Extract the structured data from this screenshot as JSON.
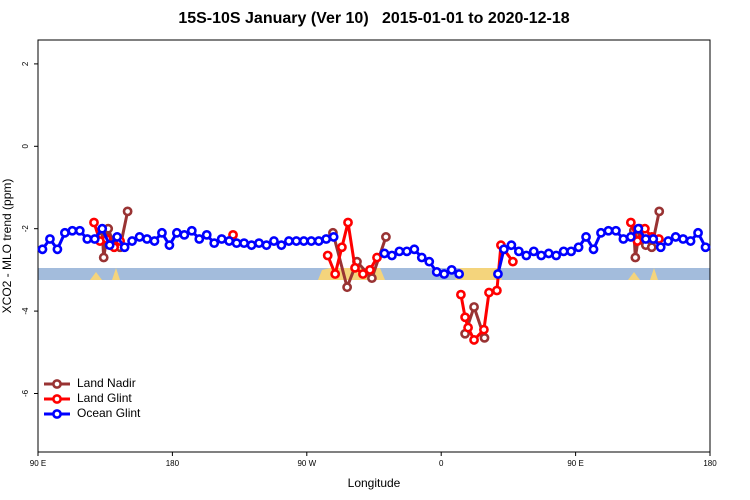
{
  "chart_data": {
    "type": "line",
    "title": "15S-10S January (Ver 10)   2015-01-01 to 2020-12-18",
    "x_label": "Longitude",
    "y_label": "XCO2 - MLO trend (ppm)",
    "xlim": [
      90,
      540
    ],
    "ylim": [
      -7.42,
      2.58
    ],
    "xticks": [
      {
        "value": 90,
        "label": "90 E"
      },
      {
        "value": 180,
        "label": "180"
      },
      {
        "value": 270,
        "label": "90 W"
      },
      {
        "value": 360,
        "label": "0"
      },
      {
        "value": 450,
        "label": "90 E"
      },
      {
        "value": 540,
        "label": "180"
      }
    ],
    "yticks": [
      2,
      0,
      -2,
      -4,
      -6
    ],
    "legend": "bottom-left",
    "series": [
      {
        "name": "Land Nadir",
        "color": "#993333",
        "x": [
          133,
          134,
          137,
          141,
          145,
          150,
          null,
          287.5,
          297,
          303.6,
          313.6,
          323,
          null,
          376,
          382,
          389,
          null,
          489,
          490,
          493,
          497,
          501,
          506
        ],
        "values": [
          -2.05,
          -2.7,
          -2.0,
          -2.4,
          -2.45,
          -1.58,
          null,
          -2.1,
          -3.42,
          -2.8,
          -3.2,
          -2.2,
          null,
          -4.55,
          -3.9,
          -4.65,
          null,
          -2.05,
          -2.7,
          -2.0,
          -2.4,
          -2.45,
          -1.58
        ]
      },
      {
        "name": "Land Glint",
        "color": "#ff0000",
        "x": [
          127.5,
          131.5,
          136,
          141,
          145,
          null,
          220.6,
          null,
          284,
          289,
          293.5,
          297.6,
          302.3,
          307.6,
          312.3,
          317,
          null,
          373.2,
          376,
          378,
          382,
          388.6,
          392,
          397.3,
          400,
          408,
          null,
          487,
          491.4,
          496.4,
          501,
          505.8
        ],
        "values": [
          -1.85,
          -2.3,
          -2.25,
          -2.45,
          -2.3,
          null,
          -2.15,
          null,
          -2.65,
          -3.1,
          -2.45,
          -1.85,
          -2.95,
          -3.1,
          -3.0,
          -2.7,
          null,
          -3.6,
          -4.15,
          -4.4,
          -4.7,
          -4.45,
          -3.55,
          -3.5,
          -2.4,
          -2.8,
          null,
          -1.85,
          -2.3,
          -2.0,
          -2.2,
          -2.25
        ]
      },
      {
        "name": "Ocean Glint",
        "color": "#0000ff",
        "x": [
          93,
          98,
          103,
          108,
          113,
          118,
          123,
          128,
          133,
          138,
          143,
          148,
          153,
          158,
          163,
          168,
          173,
          178,
          183,
          188,
          193,
          198,
          203,
          208,
          213,
          218,
          223,
          228,
          233,
          238,
          243,
          248,
          253,
          258,
          263,
          268,
          273,
          278,
          283,
          288,
          null,
          322,
          327,
          332,
          337,
          342,
          347,
          352,
          357,
          362,
          367,
          372,
          null,
          398,
          402,
          407,
          412,
          417,
          422,
          427,
          432,
          437,
          442,
          447,
          452,
          457,
          462,
          467,
          472,
          477,
          482,
          487,
          492,
          497,
          502,
          507,
          512,
          517,
          522,
          527,
          532,
          537
        ],
        "values": [
          -2.5,
          -2.25,
          -2.5,
          -2.1,
          -2.05,
          -2.05,
          -2.25,
          -2.25,
          -2.0,
          -2.4,
          -2.2,
          -2.45,
          -2.3,
          -2.2,
          -2.25,
          -2.3,
          -2.1,
          -2.4,
          -2.1,
          -2.15,
          -2.05,
          -2.25,
          -2.15,
          -2.35,
          -2.25,
          -2.3,
          -2.35,
          -2.35,
          -2.4,
          -2.35,
          -2.4,
          -2.3,
          -2.4,
          -2.3,
          -2.3,
          -2.3,
          -2.3,
          -2.3,
          -2.25,
          -2.2,
          null,
          -2.6,
          -2.65,
          -2.55,
          -2.55,
          -2.5,
          -2.7,
          -2.8,
          -3.05,
          -3.1,
          -3.0,
          -3.1,
          null,
          -3.1,
          -2.5,
          -2.4,
          -2.55,
          -2.65,
          -2.55,
          -2.65,
          -2.6,
          -2.65,
          -2.55,
          -2.55,
          -2.45,
          -2.2,
          -2.5,
          -2.1,
          -2.05,
          -2.05,
          -2.25,
          -2.2,
          -2.0,
          -2.25,
          -2.25,
          -2.45,
          -2.3,
          -2.2,
          -2.25,
          -2.3,
          -2.1,
          -2.45
        ]
      }
    ]
  }
}
